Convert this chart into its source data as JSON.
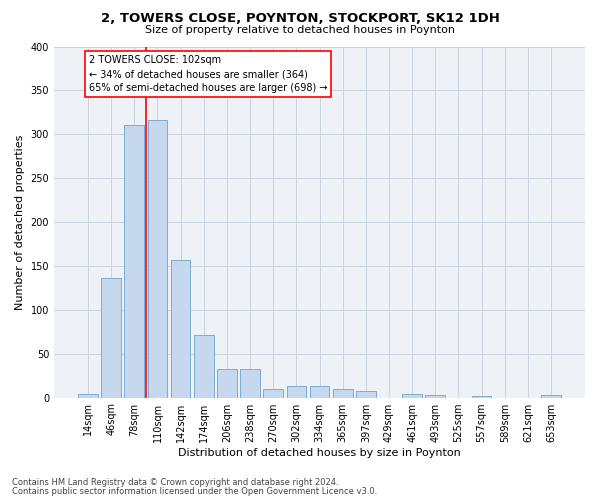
{
  "title1": "2, TOWERS CLOSE, POYNTON, STOCKPORT, SK12 1DH",
  "title2": "Size of property relative to detached houses in Poynton",
  "xlabel": "Distribution of detached houses by size in Poynton",
  "ylabel": "Number of detached properties",
  "categories": [
    "14sqm",
    "46sqm",
    "78sqm",
    "110sqm",
    "142sqm",
    "174sqm",
    "206sqm",
    "238sqm",
    "270sqm",
    "302sqm",
    "334sqm",
    "365sqm",
    "397sqm",
    "429sqm",
    "461sqm",
    "493sqm",
    "525sqm",
    "557sqm",
    "589sqm",
    "621sqm",
    "653sqm"
  ],
  "values": [
    4,
    136,
    311,
    316,
    157,
    71,
    32,
    32,
    10,
    13,
    13,
    10,
    7,
    0,
    4,
    3,
    0,
    2,
    0,
    0,
    3
  ],
  "bar_color": "#c5d8ed",
  "bar_edge_color": "#7aadd4",
  "grid_color": "#c8d4e0",
  "bg_color": "#eef2f7",
  "vline_x": 2.5,
  "annotation_text": "2 TOWERS CLOSE: 102sqm\n← 34% of detached houses are smaller (364)\n65% of semi-detached houses are larger (698) →",
  "footer1": "Contains HM Land Registry data © Crown copyright and database right 2024.",
  "footer2": "Contains public sector information licensed under the Open Government Licence v3.0.",
  "ylim": [
    0,
    400
  ],
  "yticks": [
    0,
    50,
    100,
    150,
    200,
    250,
    300,
    350,
    400
  ],
  "title1_fontsize": 9.5,
  "title2_fontsize": 8,
  "ylabel_fontsize": 8,
  "xlabel_fontsize": 8,
  "tick_fontsize": 7,
  "annot_fontsize": 7,
  "footer_fontsize": 6
}
